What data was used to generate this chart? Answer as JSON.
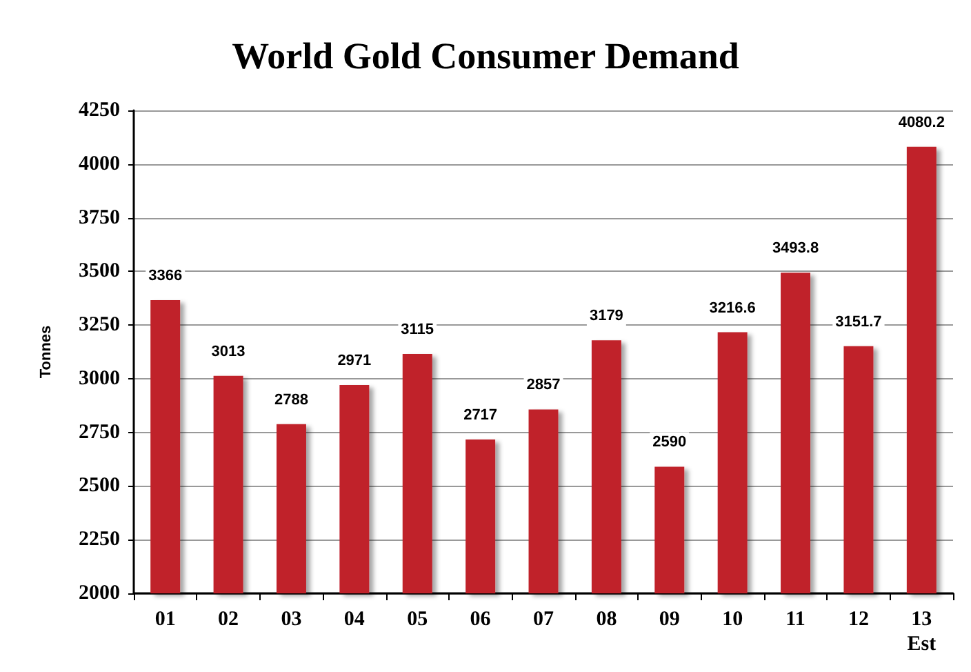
{
  "chart_data": {
    "type": "bar",
    "title": "World Gold Consumer Demand",
    "ylabel": "Tonnes",
    "categories": [
      "01",
      "02",
      "03",
      "04",
      "05",
      "06",
      "07",
      "08",
      "09",
      "10",
      "11",
      "12",
      "13\nEst"
    ],
    "values": [
      3366,
      3013,
      2788,
      2971,
      3115,
      2717,
      2857,
      3179,
      2590,
      3216.6,
      3493.8,
      3151.7,
      4080.2
    ],
    "color": "#c0202a",
    "ylim": [
      2000,
      4250
    ],
    "yticks": [
      2000,
      2250,
      2500,
      2750,
      3000,
      3250,
      3500,
      3750,
      4000,
      4250
    ],
    "grid": "y",
    "data_labels": true
  }
}
